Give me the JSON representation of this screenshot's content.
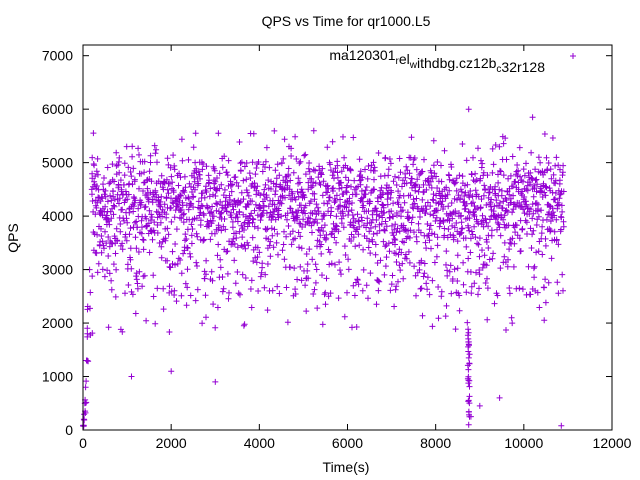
{
  "chart_data": {
    "type": "scatter",
    "title": "QPS vs Time for qr1000.L5",
    "xlabel": "Time(s)",
    "ylabel": "QPS",
    "xlim": [
      0,
      12000
    ],
    "ylim": [
      0,
      7200
    ],
    "x_ticks": [
      0,
      2000,
      4000,
      6000,
      8000,
      10000,
      12000
    ],
    "y_ticks": [
      0,
      1000,
      2000,
      3000,
      4000,
      5000,
      6000,
      7000
    ],
    "grid": false,
    "legend_position": "top-right",
    "marker": "plus",
    "series": [
      {
        "name": "ma120301_rel_withdbg.cz12b_c32r128",
        "name_parts": {
          "base1": "ma120301",
          "sub1": "r",
          "base2": "el",
          "sub2": "w",
          "base3": "ithdbg.cz12b",
          "sub3": "c",
          "base4": "32r128"
        },
        "color": "#9400d3",
        "points_summary": "dense point cloud sampled approximately every 10 s from 0 to ~10900 s",
        "x_range": [
          0,
          10900
        ],
        "typical_y_range": [
          1800,
          5600
        ],
        "median_y": 4200,
        "outliers": [
          {
            "x": 1100,
            "y": 1000
          },
          {
            "x": 2000,
            "y": 1100
          },
          {
            "x": 3000,
            "y": 900
          },
          {
            "x": 8750,
            "y": 6000
          },
          {
            "x": 8750,
            "y": 100
          },
          {
            "x": 8800,
            "y": 250
          },
          {
            "x": 9000,
            "y": 450
          },
          {
            "x": 9450,
            "y": 600
          },
          {
            "x": 10850,
            "y": 80
          },
          {
            "x": 10200,
            "y": 5850
          }
        ],
        "startup": [
          {
            "x": 0,
            "y": 80
          },
          {
            "x": 20,
            "y": 200
          },
          {
            "x": 40,
            "y": 500
          },
          {
            "x": 60,
            "y": 800
          },
          {
            "x": 80,
            "y": 1300
          },
          {
            "x": 100,
            "y": 1800
          },
          {
            "x": 150,
            "y": 3000
          },
          {
            "x": 200,
            "y": 4500
          }
        ],
        "dip_at": {
          "x": 8750,
          "y_min": 100
        }
      }
    ]
  }
}
